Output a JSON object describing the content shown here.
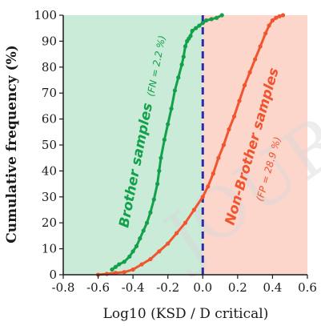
{
  "chart_data": {
    "type": "line",
    "xlabel": "Log10 (KSD / D critical)",
    "ylabel": "Cumulative frequency (%)",
    "xlim": [
      -0.8,
      0.6
    ],
    "ylim": [
      0,
      100
    ],
    "xticks": [
      "-0.8",
      "-0.6",
      "-0.4",
      "-0.2",
      "0.0",
      "0.2",
      "0.4",
      "0.6"
    ],
    "yticks": [
      "0",
      "10",
      "20",
      "30",
      "40",
      "50",
      "60",
      "70",
      "80",
      "90",
      "100"
    ],
    "grid": false,
    "threshold_x": 0.0,
    "regions": [
      {
        "name": "brother-region",
        "x_from": -0.8,
        "x_to": 0.0,
        "color": "#c9ebd8"
      },
      {
        "name": "non-brother-region",
        "x_from": 0.0,
        "x_to": 0.6,
        "color": "#fcd5cb"
      }
    ],
    "series": [
      {
        "name": "Brother samples",
        "color": "#13a04a",
        "annotation": "(FN = 2.2 %)",
        "x": [
          -0.52,
          -0.5,
          -0.48,
          -0.45,
          -0.42,
          -0.4,
          -0.38,
          -0.36,
          -0.34,
          -0.32,
          -0.3,
          -0.28,
          -0.26,
          -0.25,
          -0.24,
          -0.22,
          -0.2,
          -0.18,
          -0.16,
          -0.14,
          -0.12,
          -0.11,
          -0.1,
          -0.09,
          -0.08,
          -0.07,
          -0.06,
          -0.04,
          -0.02,
          0.0,
          0.02,
          0.05,
          0.08,
          0.11
        ],
        "y": [
          2,
          3,
          4,
          5,
          7,
          9,
          11,
          14,
          17,
          20,
          24,
          29,
          35,
          40,
          45,
          52,
          58,
          64,
          71,
          76,
          81,
          84,
          88,
          90,
          91,
          92,
          94,
          95,
          96,
          97,
          98,
          98.5,
          99,
          100
        ]
      },
      {
        "name": "Non-Brother samples",
        "color": "#f2542d",
        "annotation": "(FP = 28.9 %)",
        "x": [
          -0.6,
          -0.55,
          -0.5,
          -0.45,
          -0.4,
          -0.35,
          -0.3,
          -0.25,
          -0.2,
          -0.15,
          -0.1,
          -0.05,
          0.0,
          0.03,
          0.06,
          0.09,
          0.12,
          0.15,
          0.18,
          0.21,
          0.24,
          0.27,
          0.3,
          0.33,
          0.36,
          0.38,
          0.4,
          0.42,
          0.44,
          0.46
        ],
        "y": [
          0,
          0.3,
          0.7,
          1,
          2,
          4,
          6,
          9,
          12,
          16,
          20,
          25,
          30,
          34,
          39,
          45,
          50,
          56,
          61,
          67,
          73,
          78,
          83,
          88,
          93,
          96,
          98,
          99,
          99.6,
          100
        ]
      }
    ]
  },
  "watermark": "JOUR"
}
